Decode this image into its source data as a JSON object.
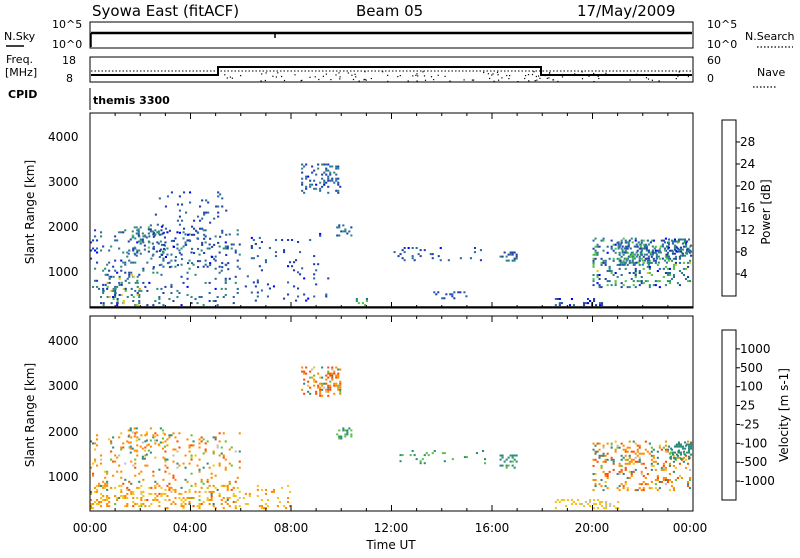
{
  "header": {
    "station": "Syowa East (fitACF)",
    "beam": "Beam 05",
    "date": "17/May/2009"
  },
  "status_panels": {
    "nsky_label": "N.Sky",
    "nsky_ticks": [
      "10^5",
      "10^0"
    ],
    "nsearch_label": "N.Search",
    "nsearch_ticks": [
      "10^5",
      "10^0"
    ],
    "freq_label": "Freq.",
    "freq_unit": "[MHz]",
    "freq_ticks": [
      "18",
      "8"
    ],
    "nave_label": "Nave",
    "nave_ticks": [
      "60",
      "0"
    ],
    "cpid_label": "CPID",
    "cpid_value": "themis 3300"
  },
  "power_panel": {
    "ylabel": "Slant Range [km]",
    "yticks": [
      "4000",
      "3000",
      "2000",
      "1000"
    ],
    "colorbar_label": "Power [dB]",
    "colorbar_ticks": [
      "28",
      "24",
      "20",
      "16",
      "12",
      "8",
      "4"
    ],
    "colors": [
      "#0000ff",
      "#1f3fa8",
      "#2a6aa0",
      "#2e8b7a",
      "#52c44a",
      "#e8c41a",
      "#f39c12",
      "#ff6a00",
      "#e8231a"
    ]
  },
  "velocity_panel": {
    "ylabel": "Slant Range [km]",
    "yticks": [
      "4000",
      "3000",
      "2000",
      "1000"
    ],
    "colorbar_label": "Velocity [m s-1]",
    "colorbar_ticks": [
      "1000",
      "500",
      "100",
      "25",
      "-25",
      "-100",
      "-500",
      "-1000"
    ],
    "colors": [
      "#2233cc",
      "#2a5aa5",
      "#2e8b7a",
      "#5bc43a",
      "#bfbfbf",
      "#f2c31a",
      "#ff8c00",
      "#ff4d00",
      "#e81a1a"
    ]
  },
  "xaxis": {
    "label": "Time UT",
    "ticks": [
      "00:00",
      "04:00",
      "08:00",
      "12:00",
      "16:00",
      "20:00",
      "00:00"
    ]
  },
  "chart_data": [
    {
      "type": "line",
      "title": "N.Sky / N.Search",
      "xlabel": "Time UT",
      "ylabel": "N.Sky",
      "y2label": "N.Search",
      "xlim": [
        0,
        24
      ],
      "yscale": "log",
      "series": [
        {
          "name": "N.Sky",
          "x": [
            0,
            24
          ],
          "y": [
            30000,
            30000
          ]
        }
      ]
    },
    {
      "type": "line",
      "title": "Freq. / Nave",
      "xlabel": "Time UT",
      "ylabel": "Freq. [MHz]",
      "ylim": [
        8,
        18
      ],
      "y2label": "Nave",
      "y2lim": [
        0,
        60
      ],
      "series": [
        {
          "name": "Freq.",
          "x": [
            0,
            5.1,
            5.1,
            18,
            18,
            24
          ],
          "y": [
            10.0,
            10.0,
            12.5,
            12.5,
            10.0,
            10.0
          ]
        },
        {
          "name": "Nave",
          "x": [
            0,
            24
          ],
          "y": [
            24,
            24
          ]
        }
      ]
    },
    {
      "type": "heatmap",
      "title": "Power [dB]",
      "xlabel": "Time UT",
      "ylabel": "Slant Range [km]",
      "xlim": [
        0,
        24
      ],
      "ylim": [
        180,
        4500
      ],
      "colorbar": {
        "label": "Power [dB]",
        "range": [
          0,
          32
        ],
        "ticks": [
          4,
          8,
          12,
          16,
          20,
          24,
          28
        ]
      },
      "regions": [
        {
          "t0": 0.0,
          "t1": 6.0,
          "r0": 200,
          "r1": 1900,
          "density": 0.09,
          "vmin": 3,
          "vmax": 14
        },
        {
          "t0": 0.5,
          "t1": 2.0,
          "r0": 200,
          "r1": 900,
          "density": 0.18,
          "vmin": 3,
          "vmax": 22
        },
        {
          "t0": 1.5,
          "t1": 3.0,
          "r0": 1300,
          "r1": 2000,
          "density": 0.16,
          "vmin": 5,
          "vmax": 15
        },
        {
          "t0": 2.5,
          "t1": 5.5,
          "r0": 1000,
          "r1": 2800,
          "density": 0.06,
          "vmin": 3,
          "vmax": 10
        },
        {
          "t0": 6.0,
          "t1": 9.5,
          "r0": 300,
          "r1": 1800,
          "density": 0.05,
          "vmin": 3,
          "vmax": 10
        },
        {
          "t0": 8.4,
          "t1": 10.0,
          "r0": 2700,
          "r1": 3350,
          "density": 0.32,
          "vmin": 3,
          "vmax": 12
        },
        {
          "t0": 9.8,
          "t1": 10.4,
          "r0": 1750,
          "r1": 2000,
          "density": 0.3,
          "vmin": 4,
          "vmax": 13
        },
        {
          "t0": 10.5,
          "t1": 11.0,
          "r0": 200,
          "r1": 350,
          "density": 0.3,
          "vmin": 8,
          "vmax": 18
        },
        {
          "t0": 12.0,
          "t1": 16.0,
          "r0": 1200,
          "r1": 1500,
          "density": 0.08,
          "vmin": 3,
          "vmax": 10
        },
        {
          "t0": 13.5,
          "t1": 15.0,
          "r0": 350,
          "r1": 500,
          "density": 0.2,
          "vmin": 4,
          "vmax": 10
        },
        {
          "t0": 16.3,
          "t1": 17.0,
          "r0": 1100,
          "r1": 1400,
          "density": 0.28,
          "vmin": 4,
          "vmax": 14
        },
        {
          "t0": 18.5,
          "t1": 20.5,
          "r0": 200,
          "r1": 350,
          "density": 0.25,
          "vmin": 3,
          "vmax": 10
        },
        {
          "t0": 20.0,
          "t1": 23.9,
          "r0": 600,
          "r1": 1700,
          "density": 0.22,
          "vmin": 3,
          "vmax": 18
        },
        {
          "t0": 21.0,
          "t1": 23.0,
          "r0": 1100,
          "r1": 1600,
          "density": 0.3,
          "vmin": 5,
          "vmax": 16
        },
        {
          "t0": 23.0,
          "t1": 23.9,
          "r0": 1300,
          "r1": 1700,
          "density": 0.4,
          "vmin": 3,
          "vmax": 14
        }
      ]
    },
    {
      "type": "heatmap",
      "title": "Velocity [m s-1]",
      "xlabel": "Time UT",
      "ylabel": "Slant Range [km]",
      "xlim": [
        0,
        24
      ],
      "ylim": [
        180,
        4500
      ],
      "colorbar": {
        "label": "Velocity [m s-1]",
        "ticks": [
          1000,
          500,
          100,
          25,
          -25,
          -100,
          -500,
          -1000
        ]
      },
      "regions": [
        {
          "t0": 0.0,
          "t1": 6.0,
          "r0": 200,
          "r1": 1900,
          "density": 0.1,
          "vmin": -600,
          "vmax": 200
        },
        {
          "t0": 0.0,
          "t1": 8.0,
          "r0": 200,
          "r1": 700,
          "density": 0.14,
          "vmin": -150,
          "vmax": -30
        },
        {
          "t0": 1.5,
          "t1": 3.0,
          "r0": 1300,
          "r1": 2000,
          "density": 0.16,
          "vmin": -300,
          "vmax": 300
        },
        {
          "t0": 8.4,
          "t1": 10.0,
          "r0": 2700,
          "r1": 3350,
          "density": 0.32,
          "vmin": -900,
          "vmax": 200
        },
        {
          "t0": 9.8,
          "t1": 10.4,
          "r0": 1750,
          "r1": 2000,
          "density": 0.3,
          "vmin": 50,
          "vmax": 150
        },
        {
          "t0": 12.0,
          "t1": 16.0,
          "r0": 1200,
          "r1": 1500,
          "density": 0.08,
          "vmin": 50,
          "vmax": 200
        },
        {
          "t0": 16.3,
          "t1": 17.0,
          "r0": 1100,
          "r1": 1400,
          "density": 0.28,
          "vmin": 80,
          "vmax": 250
        },
        {
          "t0": 18.5,
          "t1": 21.0,
          "r0": 200,
          "r1": 400,
          "density": 0.2,
          "vmin": -80,
          "vmax": -20
        },
        {
          "t0": 20.0,
          "t1": 23.9,
          "r0": 600,
          "r1": 1700,
          "density": 0.22,
          "vmin": -700,
          "vmax": 300
        },
        {
          "t0": 23.0,
          "t1": 23.9,
          "r0": 1300,
          "r1": 1700,
          "density": 0.4,
          "vmin": 50,
          "vmax": 500
        }
      ]
    }
  ]
}
